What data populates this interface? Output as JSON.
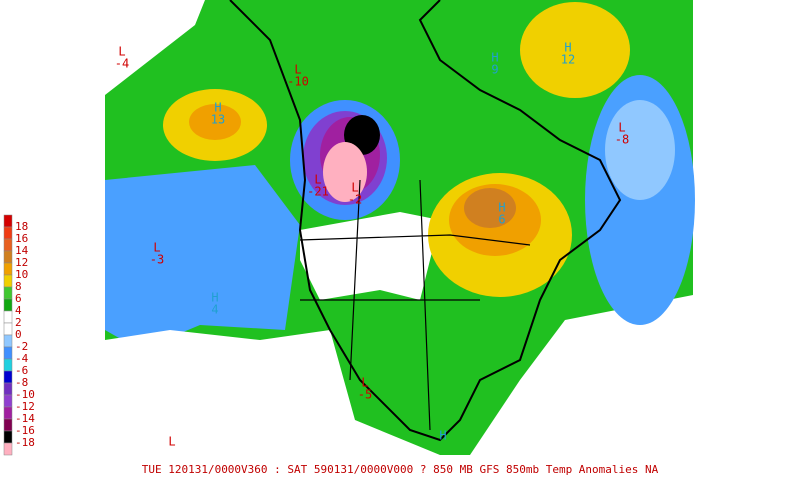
{
  "caption": "TUE 120131/0000V360 : SAT 590131/0000V000  ? 850 MB GFS 850mb Temp Anomalies NA",
  "legend": [
    {
      "value": 18,
      "color": "#d40000"
    },
    {
      "value": 16,
      "color": "#f03c14"
    },
    {
      "value": 14,
      "color": "#e86020"
    },
    {
      "value": 12,
      "color": "#d08020"
    },
    {
      "value": 10,
      "color": "#f0a000"
    },
    {
      "value": 8,
      "color": "#f0d000"
    },
    {
      "value": 6,
      "color": "#40c830"
    },
    {
      "value": 4,
      "color": "#10a810"
    },
    {
      "value": 2,
      "color": "#ffffff"
    },
    {
      "value": 0,
      "color": "#ffffff"
    },
    {
      "value": -2,
      "color": "#90c8ff"
    },
    {
      "value": -4,
      "color": "#4090ff"
    },
    {
      "value": -6,
      "color": "#20d0e0"
    },
    {
      "value": -8,
      "color": "#0000d0"
    },
    {
      "value": -10,
      "color": "#7030c0"
    },
    {
      "value": -12,
      "color": "#9040d0"
    },
    {
      "value": -14,
      "color": "#a020a0"
    },
    {
      "value": -16,
      "color": "#800050"
    },
    {
      "value": -18,
      "color": "#000000"
    }
  ],
  "centers": [
    {
      "type": "L",
      "value": -4
    },
    {
      "type": "L",
      "value": -10
    },
    {
      "type": "H",
      "value": 13
    },
    {
      "type": "H",
      "value": 9
    },
    {
      "type": "H",
      "value": 12
    },
    {
      "type": "L",
      "value": -8
    },
    {
      "type": "L",
      "value": -21
    },
    {
      "type": "L",
      "value": -2
    },
    {
      "type": "L",
      "value": -3
    },
    {
      "type": "H",
      "value": 4
    },
    {
      "type": "H",
      "value": 6
    },
    {
      "type": "L",
      "value": -5
    },
    {
      "type": "L"
    },
    {
      "type": "H"
    }
  ]
}
